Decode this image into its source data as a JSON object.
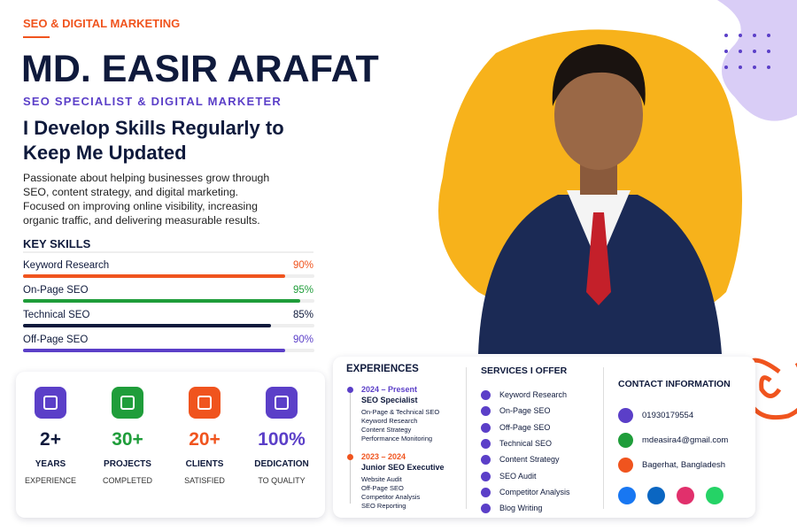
{
  "header": {
    "tag": "SEO & DIGITAL MARKETING",
    "name": "MD. EASIR ARAFAT",
    "role": "SEO SPECIALIST & DIGITAL MARKETER",
    "headline": "I Develop Skills Regularly to Keep Me Updated",
    "intro": "Passionate about helping businesses grow through SEO, content strategy, and digital marketing. Focused on improving online visibility, increasing organic traffic, and delivering measurable results."
  },
  "skills": {
    "title": "KEY SKILLS",
    "items": [
      {
        "name": "Keyword Research",
        "value": 90,
        "label": "90%",
        "color": "#f0541e"
      },
      {
        "name": "On-Page SEO",
        "value": 95,
        "label": "95%",
        "color": "#1f9d3a"
      },
      {
        "name": "Technical SEO",
        "value": 85,
        "label": "85%",
        "color": "#0f1a3c"
      },
      {
        "name": "Off-Page SEO",
        "value": 90,
        "label": "90%",
        "color": "#5b3fc8"
      }
    ]
  },
  "stats": [
    {
      "value": "2+",
      "label": "YEARS",
      "sub": "EXPERIENCE",
      "icon_color": "#5b3fc8",
      "color": "#0f1a3c"
    },
    {
      "value": "30+",
      "label": "PROJECTS",
      "sub": "COMPLETED",
      "icon_color": "#1f9d3a",
      "color": "#1f9d3a"
    },
    {
      "value": "20+",
      "label": "CLIENTS",
      "sub": "SATISFIED",
      "icon_color": "#f0541e",
      "color": "#f0541e"
    },
    {
      "value": "100%",
      "label": "DEDICATION",
      "sub": "TO QUALITY",
      "icon_color": "#5b3fc8",
      "color": "#5b3fc8"
    }
  ],
  "experiences": {
    "title": "EXPERIENCES",
    "items": [
      {
        "period": "2024 – Present",
        "role": "SEO Specialist",
        "color": "#5b3fc8",
        "points": [
          "On-Page & Technical SEO",
          "Keyword Research",
          "Content Strategy",
          "Performance Monitoring"
        ]
      },
      {
        "period": "2023 – 2024",
        "role": "Junior SEO Executive",
        "color": "#f0541e",
        "points": [
          "Website Audit",
          "Off-Page SEO",
          "Competitor Analysis",
          "SEO Reporting"
        ]
      }
    ]
  },
  "services": {
    "title": "SERVICES I OFFER",
    "items": [
      "Keyword Research",
      "On-Page SEO",
      "Off-Page SEO",
      "Technical SEO",
      "Content Strategy",
      "SEO Audit",
      "Competitor Analysis",
      "Blog Writing"
    ]
  },
  "contact": {
    "title": "CONTACT INFORMATION",
    "items": [
      {
        "text": "01930179554",
        "color": "#5b3fc8"
      },
      {
        "text": "mdeasira4@gmail.com",
        "color": "#1f9d3a"
      },
      {
        "text": "Bagerhat, Bangladesh",
        "color": "#f0541e"
      }
    ]
  }
}
